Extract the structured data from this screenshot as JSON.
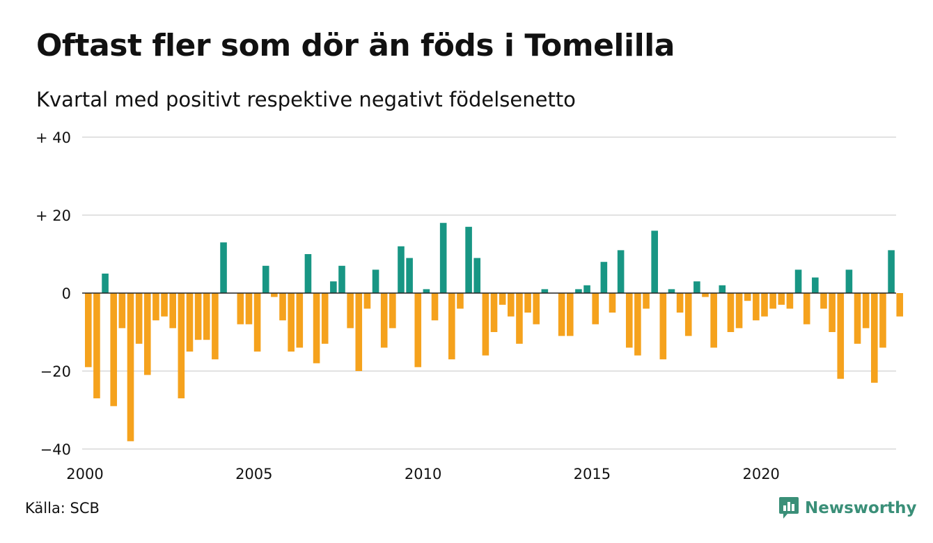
{
  "title": "Oftast fler som dör än föds i Tomelilla",
  "subtitle": "Kvartal med positivt respektive negativt födelsenetto",
  "source": "Källa: SCB",
  "brand": {
    "name": "Newsworthy",
    "color": "#3a8f78",
    "icon": "bar-chart-speech-bubble-icon"
  },
  "chart_data": {
    "type": "bar",
    "x_unit": "quarter",
    "x_start": "2000-Q1",
    "x_ticks": [
      "2000",
      "2005",
      "2010",
      "2015",
      "2020"
    ],
    "y_ticks": [
      "+ 40",
      "+ 20",
      "0",
      "−20",
      "−40"
    ],
    "y_tick_values": [
      40,
      20,
      0,
      -20,
      -40
    ],
    "ylim": [
      -40,
      40
    ],
    "grid": true,
    "colors": {
      "positive": "#189684",
      "negative": "#f5a21d"
    },
    "values": [
      -19,
      -27,
      5,
      -29,
      -9,
      -38,
      -13,
      -21,
      -7,
      -6,
      -9,
      -27,
      -15,
      -12,
      -12,
      -17,
      13,
      0,
      -8,
      -8,
      -15,
      7,
      -1,
      -7,
      -15,
      -14,
      10,
      -18,
      -13,
      3,
      7,
      -9,
      -20,
      -4,
      6,
      -14,
      -9,
      12,
      9,
      -19,
      1,
      -7,
      18,
      -17,
      -4,
      17,
      9,
      -16,
      -10,
      -3,
      -6,
      -13,
      -5,
      -8,
      1,
      0,
      -11,
      -11,
      1,
      2,
      -8,
      8,
      -5,
      11,
      -14,
      -16,
      -4,
      16,
      -17,
      1,
      -5,
      -11,
      3,
      -1,
      -14,
      2,
      -10,
      -9,
      -2,
      -7,
      -6,
      -4,
      -3,
      -4,
      6,
      -8,
      4,
      -4,
      -10,
      -22,
      6,
      -13,
      -9,
      -23,
      -14,
      11,
      -6
    ]
  }
}
